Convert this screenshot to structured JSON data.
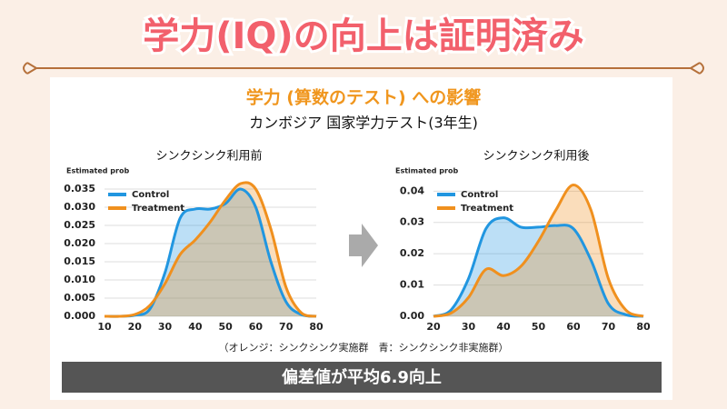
{
  "header": {
    "title": "学力(IQ)の向上は証明済み"
  },
  "slide": {
    "title": "学力 (算数のテスト) への影響",
    "subtitle": "カンボジア 国家学力テスト(3年生)",
    "note": "（オレンジ：シンクシンク実施群　青：シンクシンク非実施群）",
    "banner": "偏差値が平均6.9向上"
  },
  "chart_data": [
    {
      "type": "area",
      "title": "シンクシンク利用前",
      "y_label": "Estimated prob",
      "x": [
        10,
        15,
        20,
        25,
        30,
        35,
        40,
        45,
        50,
        55,
        60,
        65,
        70,
        75,
        80
      ],
      "series": [
        {
          "name": "Control",
          "color": "#2196e0",
          "values": [
            0,
            0,
            0.0003,
            0.002,
            0.012,
            0.027,
            0.0295,
            0.0295,
            0.031,
            0.035,
            0.03,
            0.015,
            0.004,
            0.0005,
            0
          ]
        },
        {
          "name": "Treatment",
          "color": "#f0901e",
          "values": [
            0,
            0,
            0.0005,
            0.003,
            0.009,
            0.017,
            0.021,
            0.026,
            0.032,
            0.0365,
            0.035,
            0.024,
            0.008,
            0.001,
            0
          ]
        }
      ],
      "xlim": [
        10,
        80
      ],
      "xticks": [
        10,
        20,
        30,
        40,
        50,
        60,
        70,
        80
      ],
      "ylim": [
        0,
        0.037
      ],
      "yticks": [
        {
          "value": 0,
          "label": "0.000"
        },
        0.005,
        {
          "value": 0.01,
          "label": "0.010"
        },
        0.015,
        {
          "value": 0.02,
          "label": "0.020"
        },
        0.025,
        {
          "value": 0.03,
          "label": "0.030"
        },
        0.035
      ],
      "grid": true
    },
    {
      "type": "area",
      "title": "シンクシンク利用後",
      "y_label": "Estimated prob",
      "x": [
        20,
        25,
        30,
        35,
        40,
        45,
        50,
        55,
        60,
        65,
        70,
        75,
        80
      ],
      "series": [
        {
          "name": "Control",
          "color": "#2196e0",
          "values": [
            0,
            0.002,
            0.012,
            0.028,
            0.0315,
            0.0285,
            0.0285,
            0.029,
            0.028,
            0.018,
            0.004,
            0.0005,
            0
          ]
        },
        {
          "name": "Treatment",
          "color": "#f0901e",
          "values": [
            0,
            0.001,
            0.006,
            0.015,
            0.013,
            0.016,
            0.024,
            0.034,
            0.042,
            0.034,
            0.012,
            0.002,
            0
          ]
        }
      ],
      "xlim": [
        20,
        80
      ],
      "xticks": [
        20,
        30,
        40,
        50,
        60,
        70,
        80
      ],
      "ylim": [
        0,
        0.043
      ],
      "yticks": [
        {
          "value": 0,
          "label": "0.00"
        },
        0.01,
        0.02,
        0.03,
        0.04
      ],
      "grid": true
    }
  ]
}
